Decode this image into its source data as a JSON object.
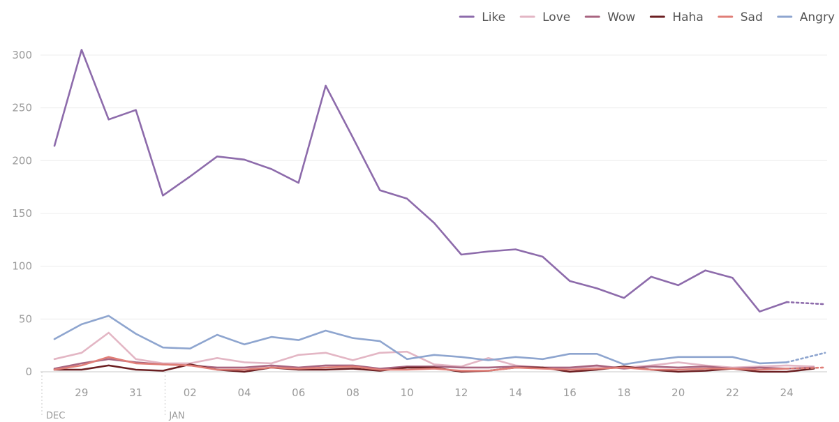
{
  "chart_data": {
    "type": "line",
    "title": "",
    "xlabel": "",
    "ylabel": "",
    "ylim": [
      0,
      300
    ],
    "yticks": [
      "0",
      "50",
      "100",
      "150",
      "200",
      "250",
      "300"
    ],
    "x": [
      "Dec 28",
      "Dec 29",
      "Dec 30",
      "Dec 31",
      "Jan 01",
      "Jan 02",
      "Jan 03",
      "Jan 04",
      "Jan 05",
      "Jan 06",
      "Jan 07",
      "Jan 08",
      "Jan 09",
      "Jan 10",
      "Jan 11",
      "Jan 12",
      "Jan 13",
      "Jan 14",
      "Jan 15",
      "Jan 16",
      "Jan 17",
      "Jan 18",
      "Jan 19",
      "Jan 20",
      "Jan 21",
      "Jan 22",
      "Jan 23",
      "Jan 24",
      "Jan 25"
    ],
    "xticks": [
      "29",
      "31",
      "02",
      "04",
      "06",
      "08",
      "10",
      "12",
      "14",
      "16",
      "18",
      "20",
      "22",
      "24"
    ],
    "month_labels": [
      "DEC",
      "JAN"
    ],
    "legend_position": "top-right",
    "grid": true,
    "series": [
      {
        "name": "Like",
        "color": "#8d6bab",
        "projected_last": true,
        "values": [
          214,
          305,
          239,
          248,
          167,
          185,
          204,
          201,
          192,
          179,
          271,
          222,
          172,
          164,
          141,
          111,
          114,
          116,
          109,
          86,
          79,
          70,
          90,
          82,
          96,
          89,
          57,
          66,
          64
        ]
      },
      {
        "name": "Love",
        "color": "#e3b6c4",
        "projected_last": false,
        "values": [
          12,
          18,
          37,
          12,
          8,
          8,
          13,
          9,
          8,
          16,
          18,
          11,
          18,
          19,
          7,
          5,
          13,
          6,
          4,
          3,
          5,
          4,
          6,
          9,
          6,
          4,
          5,
          6,
          5
        ]
      },
      {
        "name": "Wow",
        "color": "#a86580",
        "projected_last": false,
        "values": [
          3,
          8,
          12,
          9,
          7,
          6,
          4,
          4,
          6,
          4,
          6,
          6,
          3,
          5,
          5,
          4,
          4,
          5,
          4,
          4,
          6,
          3,
          5,
          4,
          5,
          3,
          4,
          3,
          4
        ]
      },
      {
        "name": "Haha",
        "color": "#6b1f22",
        "projected_last": false,
        "values": [
          2,
          2,
          6,
          2,
          1,
          7,
          2,
          0,
          4,
          2,
          2,
          3,
          1,
          4,
          4,
          0,
          1,
          4,
          4,
          0,
          2,
          5,
          2,
          0,
          1,
          3,
          0,
          0,
          3
        ]
      },
      {
        "name": "Sad",
        "color": "#e07e77",
        "projected_last": true,
        "values": [
          2,
          6,
          14,
          8,
          7,
          6,
          2,
          2,
          4,
          3,
          4,
          5,
          2,
          2,
          3,
          1,
          1,
          4,
          3,
          2,
          3,
          4,
          2,
          2,
          3,
          3,
          2,
          3,
          4
        ]
      },
      {
        "name": "Angry",
        "color": "#8ea5cf",
        "projected_last": true,
        "values": [
          31,
          45,
          53,
          36,
          23,
          22,
          35,
          26,
          33,
          30,
          39,
          32,
          29,
          12,
          16,
          14,
          11,
          14,
          12,
          17,
          17,
          7,
          11,
          14,
          14,
          14,
          8,
          9,
          18
        ]
      }
    ]
  }
}
